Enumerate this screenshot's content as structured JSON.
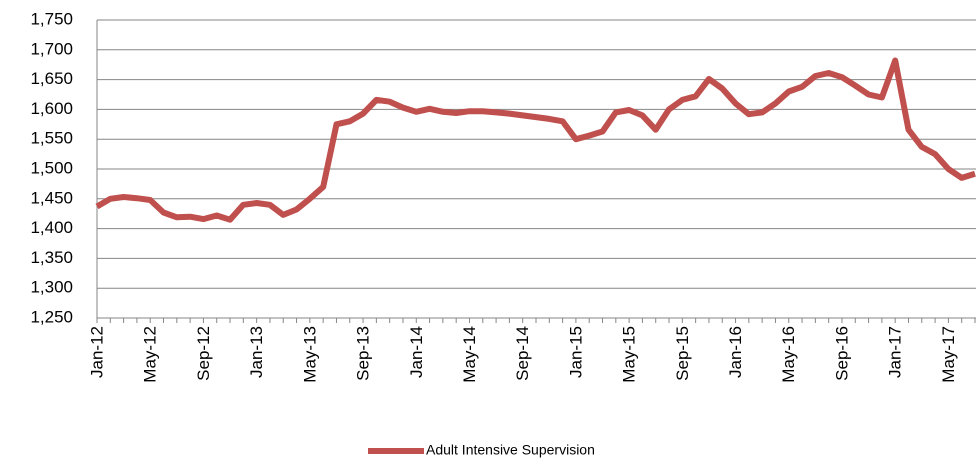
{
  "chart_data": {
    "type": "line",
    "categories": [
      "Jan-12",
      null,
      null,
      null,
      "May-12",
      null,
      null,
      null,
      "Sep-12",
      null,
      null,
      null,
      "Jan-13",
      null,
      null,
      null,
      "May-13",
      null,
      null,
      null,
      "Sep-13",
      null,
      null,
      null,
      "Jan-14",
      null,
      null,
      null,
      "May-14",
      null,
      null,
      null,
      "Sep-14",
      null,
      null,
      null,
      "Jan-15",
      null,
      null,
      null,
      "May-15",
      null,
      null,
      null,
      "Sep-15",
      null,
      null,
      null,
      "Jan-16",
      null,
      null,
      null,
      "May-16",
      null,
      null,
      null,
      "Sep-16",
      null,
      null,
      null,
      "Jan-17",
      null,
      null,
      null,
      "May-17",
      null,
      null
    ],
    "series": [
      {
        "name": "Adult Intensive Supervision",
        "color": "#c0504d",
        "values": [
          1437,
          1450,
          1453,
          1451,
          1448,
          1427,
          1419,
          1420,
          1416,
          1422,
          1415,
          1440,
          1443,
          1440,
          1423,
          1432,
          1450,
          1470,
          1575,
          1580,
          1593,
          1616,
          1613,
          1603,
          1596,
          1601,
          1596,
          1594,
          1597,
          1597,
          1595,
          1593,
          1590,
          1587,
          1584,
          1580,
          1550,
          1556,
          1563,
          1595,
          1599,
          1590,
          1566,
          1600,
          1616,
          1622,
          1651,
          1635,
          1610,
          1592,
          1595,
          1610,
          1630,
          1638,
          1656,
          1661,
          1654,
          1640,
          1625,
          1620,
          1682,
          1566,
          1537,
          1525,
          1500,
          1485,
          1492
        ]
      }
    ],
    "ylim": [
      1250,
      1750
    ],
    "yticks": [
      {
        "value": 1250,
        "label": "1,250"
      },
      {
        "value": 1300,
        "label": "1,300"
      },
      {
        "value": 1350,
        "label": "1,350"
      },
      {
        "value": 1400,
        "label": "1,400"
      },
      {
        "value": 1450,
        "label": "1,450"
      },
      {
        "value": 1500,
        "label": "1,500"
      },
      {
        "value": 1550,
        "label": "1,550"
      },
      {
        "value": 1600,
        "label": "1,600"
      },
      {
        "value": 1650,
        "label": "1,650"
      },
      {
        "value": 1700,
        "label": "1,700"
      },
      {
        "value": 1750,
        "label": "1,750"
      }
    ],
    "grid": true,
    "legend": "bottom"
  }
}
